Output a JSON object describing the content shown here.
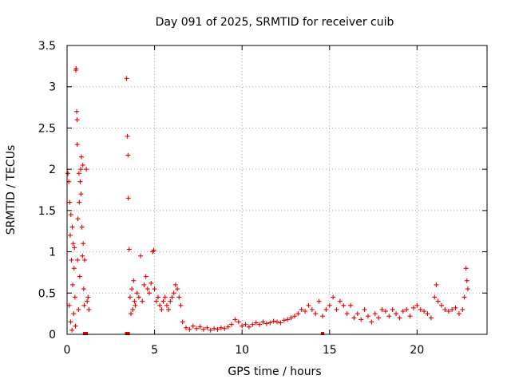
{
  "chart_data": {
    "type": "scatter",
    "title": "Day 091 of 2025, SRMTID for receiver cuib",
    "xlabel": "GPS time / hours",
    "ylabel": "SRMTID / TECUs",
    "xlim": [
      0,
      24
    ],
    "ylim": [
      0,
      3.5
    ],
    "grid": true,
    "marker": "+",
    "color": "#e00000",
    "x_ticks": [
      0,
      5,
      10,
      15,
      20
    ],
    "x_tick_labels": [
      "0",
      "5",
      "10",
      "15",
      "20"
    ],
    "y_ticks": [
      0,
      0.5,
      1,
      1.5,
      2,
      2.5,
      3,
      3.5
    ],
    "y_tick_labels": [
      "0",
      "0.5",
      "1",
      "1.5",
      "2",
      "2.5",
      "3",
      "3.5"
    ],
    "series": [
      {
        "name": "SRMTID",
        "points": [
          [
            0.05,
            1.95
          ],
          [
            0.1,
            1.85
          ],
          [
            0.12,
            0.35
          ],
          [
            0.15,
            1.6
          ],
          [
            0.18,
            1.2
          ],
          [
            0.2,
            0.15
          ],
          [
            0.22,
            1.45
          ],
          [
            0.25,
            0.9
          ],
          [
            0.28,
            0.05
          ],
          [
            0.3,
            1.3
          ],
          [
            0.32,
            0.6
          ],
          [
            0.35,
            1.1
          ],
          [
            0.38,
            0.25
          ],
          [
            0.4,
            0.8
          ],
          [
            0.42,
            1.05
          ],
          [
            0.45,
            0.45
          ],
          [
            0.48,
            0.1
          ],
          [
            0.5,
            3.2
          ],
          [
            0.52,
            3.22
          ],
          [
            0.55,
            2.7
          ],
          [
            0.57,
            2.6
          ],
          [
            0.58,
            2.3
          ],
          [
            0.6,
            0.9
          ],
          [
            0.62,
            1.4
          ],
          [
            0.65,
            0.3
          ],
          [
            0.68,
            1.95
          ],
          [
            0.7,
            1.6
          ],
          [
            0.72,
            0.7
          ],
          [
            0.75,
            1.85
          ],
          [
            0.78,
            2.0
          ],
          [
            0.8,
            1.7
          ],
          [
            0.82,
            2.15
          ],
          [
            0.85,
            1.3
          ],
          [
            0.88,
            0.95
          ],
          [
            0.9,
            2.05
          ],
          [
            0.92,
            1.1
          ],
          [
            0.95,
            0.55
          ],
          [
            0.98,
            0.35
          ],
          [
            1.0,
            0.9
          ],
          [
            1.1,
            2.0
          ],
          [
            1.15,
            0.4
          ],
          [
            1.2,
            0.45
          ],
          [
            1.25,
            0.3
          ],
          [
            3.4,
            3.1
          ],
          [
            3.45,
            2.4
          ],
          [
            3.48,
            2.17
          ],
          [
            3.5,
            1.65
          ],
          [
            3.55,
            1.03
          ],
          [
            3.6,
            0.45
          ],
          [
            3.65,
            0.25
          ],
          [
            3.7,
            0.55
          ],
          [
            3.75,
            0.3
          ],
          [
            3.8,
            0.65
          ],
          [
            3.85,
            0.4
          ],
          [
            3.9,
            0.35
          ],
          [
            4.0,
            0.5
          ],
          [
            4.1,
            0.45
          ],
          [
            4.2,
            0.95
          ],
          [
            4.3,
            0.4
          ],
          [
            4.4,
            0.6
          ],
          [
            4.5,
            0.7
          ],
          [
            4.6,
            0.55
          ],
          [
            4.7,
            0.5
          ],
          [
            4.8,
            0.62
          ],
          [
            4.9,
            1.0
          ],
          [
            4.95,
            1.02
          ],
          [
            5.0,
            0.55
          ],
          [
            5.1,
            0.4
          ],
          [
            5.2,
            0.45
          ],
          [
            5.3,
            0.35
          ],
          [
            5.4,
            0.3
          ],
          [
            5.5,
            0.4
          ],
          [
            5.6,
            0.45
          ],
          [
            5.7,
            0.35
          ],
          [
            5.8,
            0.3
          ],
          [
            5.9,
            0.4
          ],
          [
            6.0,
            0.45
          ],
          [
            6.1,
            0.5
          ],
          [
            6.2,
            0.6
          ],
          [
            6.3,
            0.55
          ],
          [
            6.4,
            0.45
          ],
          [
            6.5,
            0.35
          ],
          [
            6.6,
            0.15
          ],
          [
            6.8,
            0.08
          ],
          [
            7.0,
            0.06
          ],
          [
            7.2,
            0.1
          ],
          [
            7.4,
            0.07
          ],
          [
            7.6,
            0.09
          ],
          [
            7.8,
            0.06
          ],
          [
            8.0,
            0.08
          ],
          [
            8.2,
            0.05
          ],
          [
            8.4,
            0.07
          ],
          [
            8.6,
            0.06
          ],
          [
            8.8,
            0.08
          ],
          [
            9.0,
            0.07
          ],
          [
            9.2,
            0.09
          ],
          [
            9.4,
            0.12
          ],
          [
            9.6,
            0.18
          ],
          [
            9.8,
            0.15
          ],
          [
            10.0,
            0.1
          ],
          [
            10.2,
            0.12
          ],
          [
            10.4,
            0.09
          ],
          [
            10.6,
            0.12
          ],
          [
            10.8,
            0.14
          ],
          [
            11.0,
            0.12
          ],
          [
            11.2,
            0.15
          ],
          [
            11.4,
            0.13
          ],
          [
            11.6,
            0.14
          ],
          [
            11.8,
            0.16
          ],
          [
            12.0,
            0.15
          ],
          [
            12.2,
            0.14
          ],
          [
            12.4,
            0.17
          ],
          [
            12.6,
            0.18
          ],
          [
            12.8,
            0.2
          ],
          [
            13.0,
            0.22
          ],
          [
            13.2,
            0.25
          ],
          [
            13.4,
            0.3
          ],
          [
            13.6,
            0.28
          ],
          [
            13.8,
            0.35
          ],
          [
            14.0,
            0.3
          ],
          [
            14.2,
            0.25
          ],
          [
            14.4,
            0.4
          ],
          [
            14.6,
            0.22
          ],
          [
            14.8,
            0.3
          ],
          [
            15.0,
            0.35
          ],
          [
            15.2,
            0.45
          ],
          [
            15.4,
            0.3
          ],
          [
            15.6,
            0.4
          ],
          [
            15.8,
            0.35
          ],
          [
            16.0,
            0.25
          ],
          [
            16.2,
            0.35
          ],
          [
            16.4,
            0.2
          ],
          [
            16.6,
            0.25
          ],
          [
            16.8,
            0.18
          ],
          [
            17.0,
            0.3
          ],
          [
            17.2,
            0.22
          ],
          [
            17.4,
            0.15
          ],
          [
            17.6,
            0.25
          ],
          [
            17.8,
            0.2
          ],
          [
            18.0,
            0.3
          ],
          [
            18.2,
            0.28
          ],
          [
            18.4,
            0.22
          ],
          [
            18.6,
            0.3
          ],
          [
            18.8,
            0.25
          ],
          [
            19.0,
            0.2
          ],
          [
            19.2,
            0.28
          ],
          [
            19.4,
            0.3
          ],
          [
            19.6,
            0.22
          ],
          [
            19.8,
            0.32
          ],
          [
            20.0,
            0.35
          ],
          [
            20.2,
            0.3
          ],
          [
            20.4,
            0.28
          ],
          [
            20.6,
            0.25
          ],
          [
            20.8,
            0.2
          ],
          [
            21.0,
            0.45
          ],
          [
            21.1,
            0.6
          ],
          [
            21.2,
            0.4
          ],
          [
            21.4,
            0.35
          ],
          [
            21.6,
            0.3
          ],
          [
            21.8,
            0.28
          ],
          [
            22.0,
            0.3
          ],
          [
            22.2,
            0.32
          ],
          [
            22.4,
            0.25
          ],
          [
            22.6,
            0.3
          ],
          [
            22.7,
            0.45
          ],
          [
            22.8,
            0.8
          ],
          [
            22.85,
            0.65
          ],
          [
            22.9,
            0.55
          ]
        ]
      }
    ],
    "baseline_markers_x": [
      1.0,
      1.1,
      3.4,
      3.5,
      14.6
    ]
  }
}
